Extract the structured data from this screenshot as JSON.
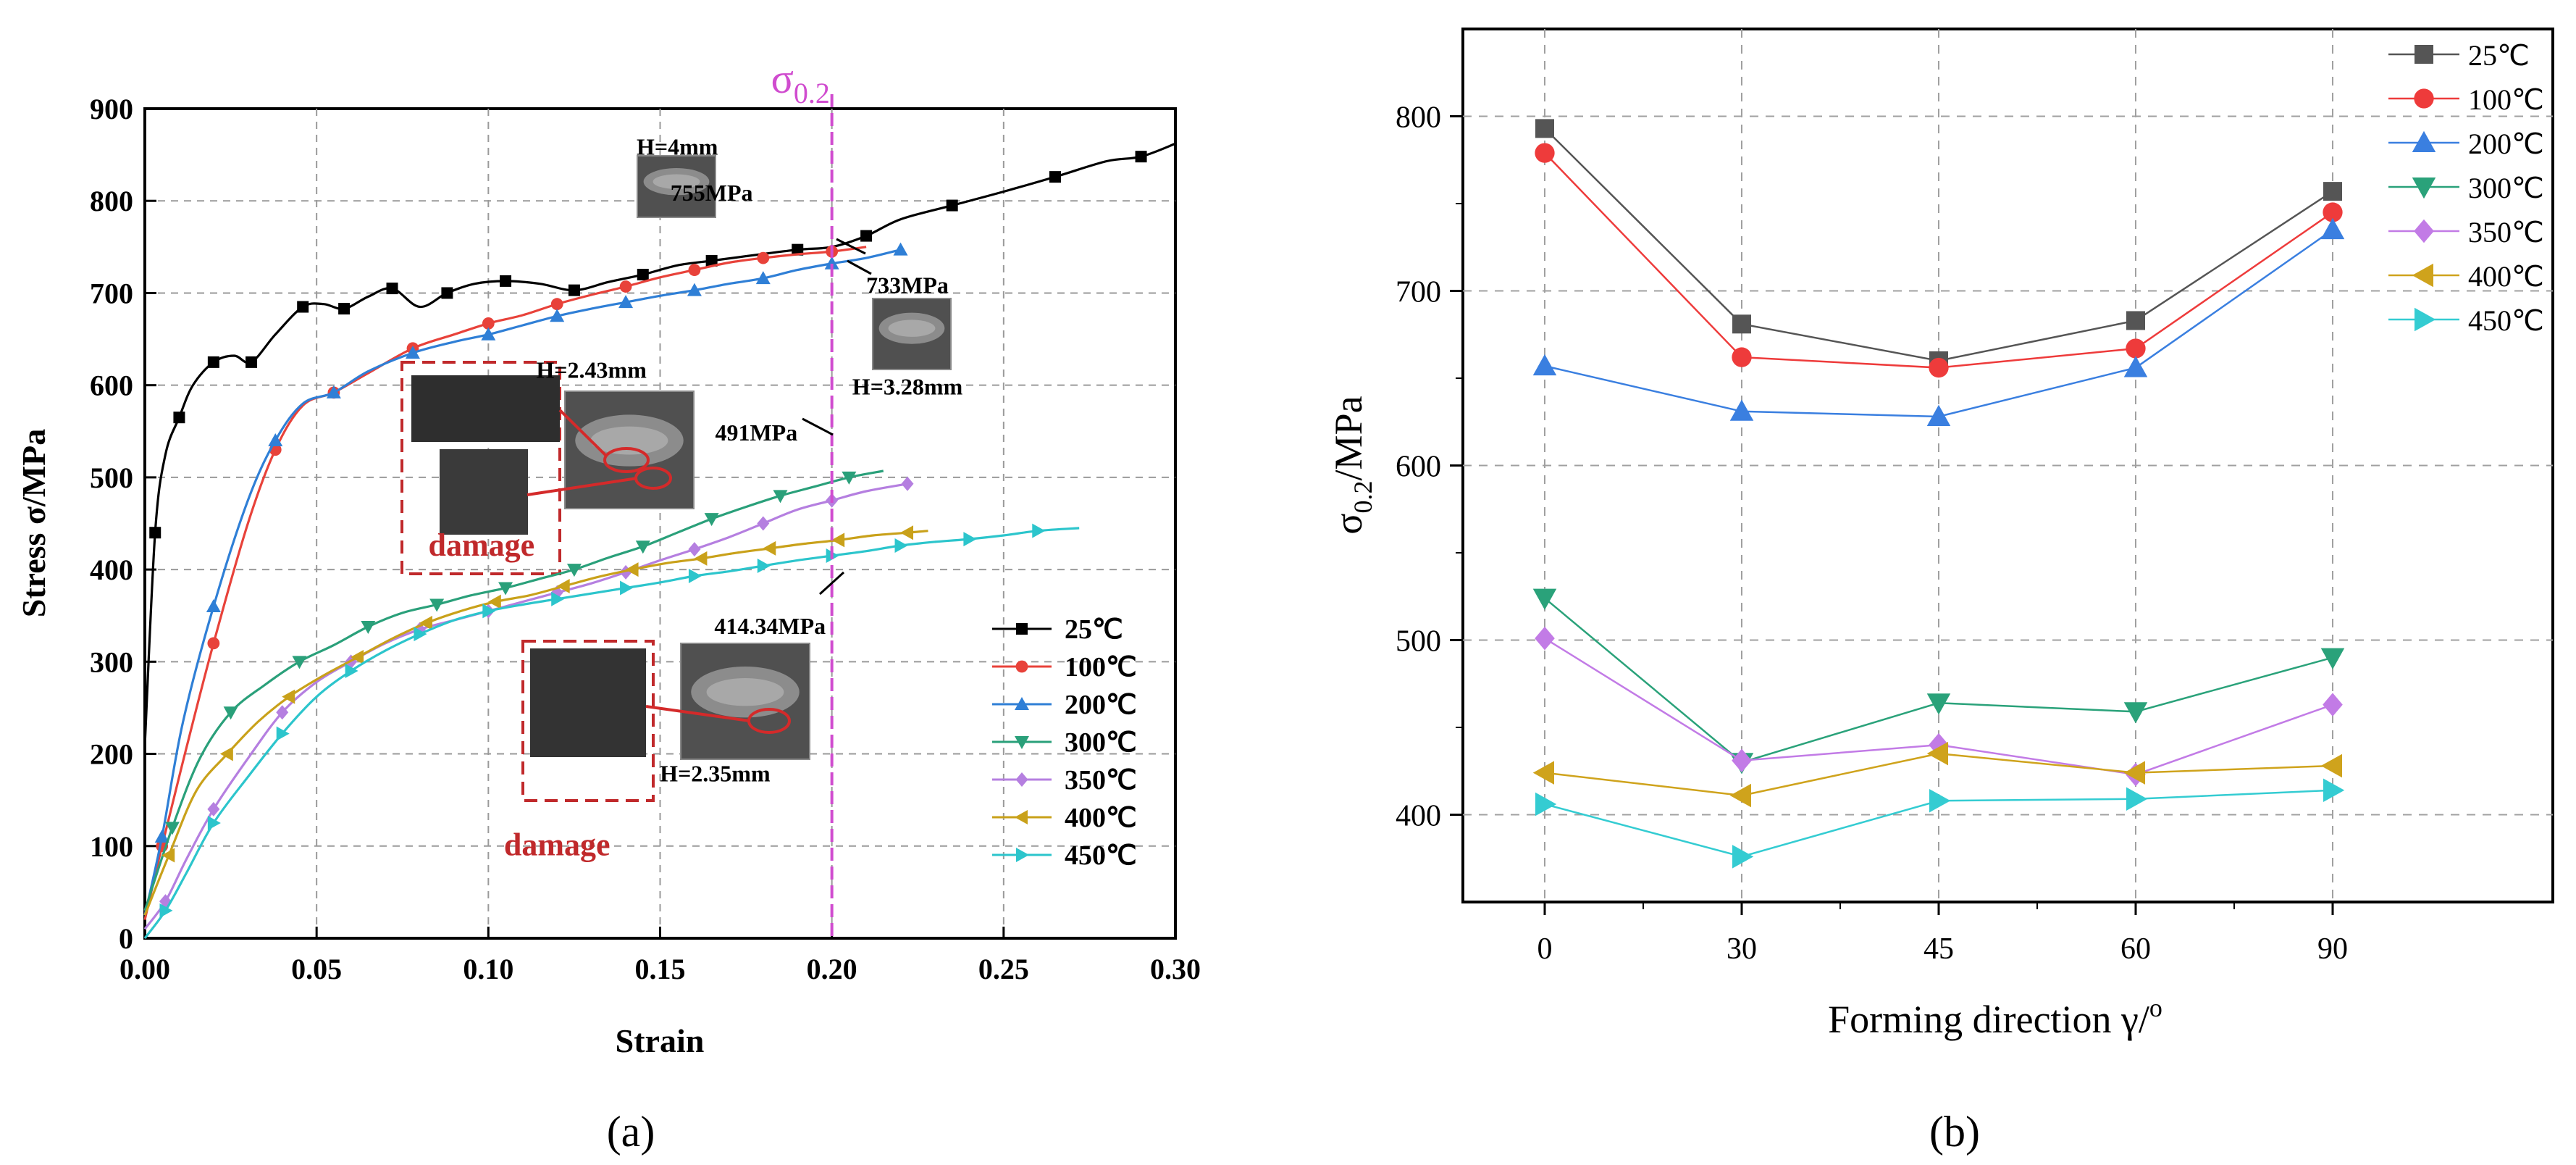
{
  "chart_data": [
    {
      "type": "line",
      "panel_label": "(a)",
      "xlabel": "Strain",
      "ylabel": "Stress σ/MPa",
      "xlim": [
        0.0,
        0.3
      ],
      "ylim": [
        0,
        900
      ],
      "xticks": [
        "0.00",
        "0.05",
        "0.10",
        "0.15",
        "0.20",
        "0.25",
        "0.30"
      ],
      "yticks": [
        "0",
        "100",
        "200",
        "300",
        "400",
        "500",
        "600",
        "700",
        "800",
        "900"
      ],
      "grid": true,
      "legend_position": "bottom-right",
      "vline": {
        "x": 0.2,
        "label_main": "σ",
        "label_sub": "0.2"
      },
      "series": [
        {
          "name": "25℃",
          "color": "#000000",
          "marker": "square",
          "points": [
            [
              0,
              210
            ],
            [
              0.003,
              440
            ],
            [
              0.006,
              525
            ],
            [
              0.01,
              565
            ],
            [
              0.014,
              600
            ],
            [
              0.02,
              625
            ],
            [
              0.026,
              632
            ],
            [
              0.031,
              625
            ],
            [
              0.038,
              655
            ],
            [
              0.046,
              685
            ],
            [
              0.052,
              688
            ],
            [
              0.058,
              683
            ],
            [
              0.065,
              696
            ],
            [
              0.072,
              705
            ],
            [
              0.08,
              685
            ],
            [
              0.088,
              700
            ],
            [
              0.096,
              710
            ],
            [
              0.105,
              713
            ],
            [
              0.115,
              710
            ],
            [
              0.125,
              703
            ],
            [
              0.135,
              712
            ],
            [
              0.145,
              720
            ],
            [
              0.155,
              730
            ],
            [
              0.165,
              735
            ],
            [
              0.175,
              740
            ],
            [
              0.19,
              747
            ],
            [
              0.2,
              750
            ],
            [
              0.21,
              762
            ],
            [
              0.22,
              780
            ],
            [
              0.235,
              795
            ],
            [
              0.25,
              810
            ],
            [
              0.265,
              826
            ],
            [
              0.28,
              843
            ],
            [
              0.29,
              848
            ],
            [
              0.3,
              862
            ]
          ]
        },
        {
          "name": "100℃",
          "color": "#e8423a",
          "marker": "circle",
          "points": [
            [
              0,
              20
            ],
            [
              0.005,
              100
            ],
            [
              0.012,
              205
            ],
            [
              0.02,
              320
            ],
            [
              0.03,
              450
            ],
            [
              0.038,
              530
            ],
            [
              0.046,
              578
            ],
            [
              0.055,
              592
            ],
            [
              0.065,
              613
            ],
            [
              0.078,
              640
            ],
            [
              0.09,
              655
            ],
            [
              0.1,
              667
            ],
            [
              0.11,
              676
            ],
            [
              0.12,
              688
            ],
            [
              0.13,
              698
            ],
            [
              0.14,
              707
            ],
            [
              0.15,
              717
            ],
            [
              0.16,
              725
            ],
            [
              0.17,
              733
            ],
            [
              0.18,
              738
            ],
            [
              0.19,
              742
            ],
            [
              0.2,
              745
            ],
            [
              0.21,
              750
            ]
          ]
        },
        {
          "name": "200℃",
          "color": "#2f7fd6",
          "marker": "triangle-up",
          "points": [
            [
              0,
              25
            ],
            [
              0.005,
              110
            ],
            [
              0.011,
              233
            ],
            [
              0.02,
              360
            ],
            [
              0.03,
              475
            ],
            [
              0.038,
              540
            ],
            [
              0.046,
              580
            ],
            [
              0.055,
              592
            ],
            [
              0.065,
              615
            ],
            [
              0.078,
              635
            ],
            [
              0.09,
              647
            ],
            [
              0.1,
              655
            ],
            [
              0.11,
              665
            ],
            [
              0.12,
              675
            ],
            [
              0.13,
              683
            ],
            [
              0.14,
              690
            ],
            [
              0.15,
              697
            ],
            [
              0.16,
              703
            ],
            [
              0.17,
              710
            ],
            [
              0.18,
              716
            ],
            [
              0.19,
              725
            ],
            [
              0.2,
              732
            ],
            [
              0.21,
              738
            ],
            [
              0.22,
              747
            ]
          ]
        },
        {
          "name": "300℃",
          "color": "#2aa07a",
          "marker": "triangle-down",
          "points": [
            [
              0,
              30
            ],
            [
              0.008,
              120
            ],
            [
              0.016,
              195
            ],
            [
              0.025,
              245
            ],
            [
              0.035,
              275
            ],
            [
              0.045,
              300
            ],
            [
              0.055,
              318
            ],
            [
              0.065,
              338
            ],
            [
              0.075,
              353
            ],
            [
              0.085,
              362
            ],
            [
              0.095,
              372
            ],
            [
              0.105,
              380
            ],
            [
              0.115,
              390
            ],
            [
              0.125,
              400
            ],
            [
              0.135,
              413
            ],
            [
              0.145,
              425
            ],
            [
              0.155,
              440
            ],
            [
              0.165,
              455
            ],
            [
              0.175,
              468
            ],
            [
              0.185,
              480
            ],
            [
              0.195,
              490
            ],
            [
              0.205,
              500
            ],
            [
              0.215,
              507
            ]
          ]
        },
        {
          "name": "350℃",
          "color": "#b57fe0",
          "marker": "diamond",
          "points": [
            [
              0,
              10
            ],
            [
              0.006,
              40
            ],
            [
              0.012,
              85
            ],
            [
              0.02,
              140
            ],
            [
              0.03,
              195
            ],
            [
              0.04,
              245
            ],
            [
              0.05,
              278
            ],
            [
              0.06,
              300
            ],
            [
              0.07,
              320
            ],
            [
              0.08,
              335
            ],
            [
              0.09,
              345
            ],
            [
              0.1,
              355
            ],
            [
              0.11,
              365
            ],
            [
              0.12,
              375
            ],
            [
              0.13,
              385
            ],
            [
              0.14,
              397
            ],
            [
              0.15,
              410
            ],
            [
              0.16,
              422
            ],
            [
              0.17,
              435
            ],
            [
              0.18,
              450
            ],
            [
              0.19,
              465
            ],
            [
              0.2,
              475
            ],
            [
              0.21,
              485
            ],
            [
              0.222,
              493
            ]
          ]
        },
        {
          "name": "400℃",
          "color": "#c9a11a",
          "marker": "triangle-left",
          "points": [
            [
              0,
              25
            ],
            [
              0.007,
              90
            ],
            [
              0.015,
              160
            ],
            [
              0.024,
              200
            ],
            [
              0.033,
              235
            ],
            [
              0.042,
              262
            ],
            [
              0.052,
              285
            ],
            [
              0.062,
              305
            ],
            [
              0.072,
              325
            ],
            [
              0.082,
              342
            ],
            [
              0.092,
              355
            ],
            [
              0.102,
              365
            ],
            [
              0.112,
              372
            ],
            [
              0.122,
              382
            ],
            [
              0.132,
              392
            ],
            [
              0.142,
              400
            ],
            [
              0.152,
              407
            ],
            [
              0.162,
              412
            ],
            [
              0.172,
              418
            ],
            [
              0.182,
              423
            ],
            [
              0.192,
              428
            ],
            [
              0.202,
              432
            ],
            [
              0.212,
              437
            ],
            [
              0.222,
              440
            ],
            [
              0.228,
              442
            ]
          ]
        },
        {
          "name": "450℃",
          "color": "#2cc5cc",
          "marker": "triangle-right",
          "points": [
            [
              0,
              0
            ],
            [
              0.006,
              30
            ],
            [
              0.012,
              70
            ],
            [
              0.02,
              125
            ],
            [
              0.03,
              175
            ],
            [
              0.04,
              222
            ],
            [
              0.05,
              262
            ],
            [
              0.06,
              290
            ],
            [
              0.07,
              312
            ],
            [
              0.08,
              330
            ],
            [
              0.09,
              345
            ],
            [
              0.1,
              355
            ],
            [
              0.11,
              362
            ],
            [
              0.12,
              368
            ],
            [
              0.13,
              374
            ],
            [
              0.14,
              380
            ],
            [
              0.15,
              386
            ],
            [
              0.16,
              393
            ],
            [
              0.17,
              398
            ],
            [
              0.18,
              404
            ],
            [
              0.19,
              410
            ],
            [
              0.2,
              415
            ],
            [
              0.21,
              420
            ],
            [
              0.22,
              426
            ],
            [
              0.23,
              430
            ],
            [
              0.24,
              433
            ],
            [
              0.25,
              437
            ],
            [
              0.26,
              442
            ],
            [
              0.272,
              445
            ]
          ]
        }
      ],
      "annotations": [
        {
          "text": "H=4mm",
          "x": 0.155,
          "y": 850
        },
        {
          "text": "755MPa",
          "x": 0.165,
          "y": 800
        },
        {
          "text": "733MPa",
          "x": 0.222,
          "y": 700
        },
        {
          "text": "H=3.28mm",
          "x": 0.222,
          "y": 590
        },
        {
          "text": "H=2.43mm",
          "x": 0.13,
          "y": 608
        },
        {
          "text": "491MPa",
          "x": 0.178,
          "y": 540
        },
        {
          "text": "damage",
          "x": 0.098,
          "y": 415
        },
        {
          "text": "414.34MPa",
          "x": 0.182,
          "y": 330
        },
        {
          "text": "damage",
          "x": 0.12,
          "y": 90
        },
        {
          "text": "H=2.35mm",
          "x": 0.166,
          "y": 170
        }
      ]
    },
    {
      "type": "line",
      "panel_label": "(b)",
      "xlabel_main": "Forming direction γ/",
      "xlabel_sup": "o",
      "ylabel_main": "σ",
      "ylabel_sub": "0.2",
      "ylabel_rest": "/MPa",
      "categories": [
        "0",
        "30",
        "45",
        "60",
        "90"
      ],
      "ylim": [
        350,
        850
      ],
      "yticks": [
        "400",
        "500",
        "600",
        "700",
        "800"
      ],
      "grid": true,
      "legend_position": "top-right",
      "series": [
        {
          "name": "25℃",
          "color": "#555555",
          "marker": "square",
          "values": [
            793,
            681,
            660,
            683,
            757
          ]
        },
        {
          "name": "100℃",
          "color": "#ee3b3b",
          "marker": "circle",
          "values": [
            779,
            662,
            656,
            667,
            745
          ]
        },
        {
          "name": "200℃",
          "color": "#3a7fe0",
          "marker": "triangle-up",
          "values": [
            657,
            631,
            628,
            656,
            735
          ]
        },
        {
          "name": "300℃",
          "color": "#2aa27a",
          "marker": "triangle-down",
          "values": [
            524,
            430,
            464,
            459,
            490
          ]
        },
        {
          "name": "350℃",
          "color": "#c27be6",
          "marker": "diamond",
          "values": [
            501,
            431,
            440,
            423,
            463
          ]
        },
        {
          "name": "400℃",
          "color": "#cfa31c",
          "marker": "triangle-left",
          "values": [
            424,
            411,
            435,
            424,
            428
          ]
        },
        {
          "name": "450℃",
          "color": "#34ccd2",
          "marker": "triangle-right",
          "values": [
            406,
            376,
            408,
            409,
            414
          ]
        }
      ]
    }
  ]
}
